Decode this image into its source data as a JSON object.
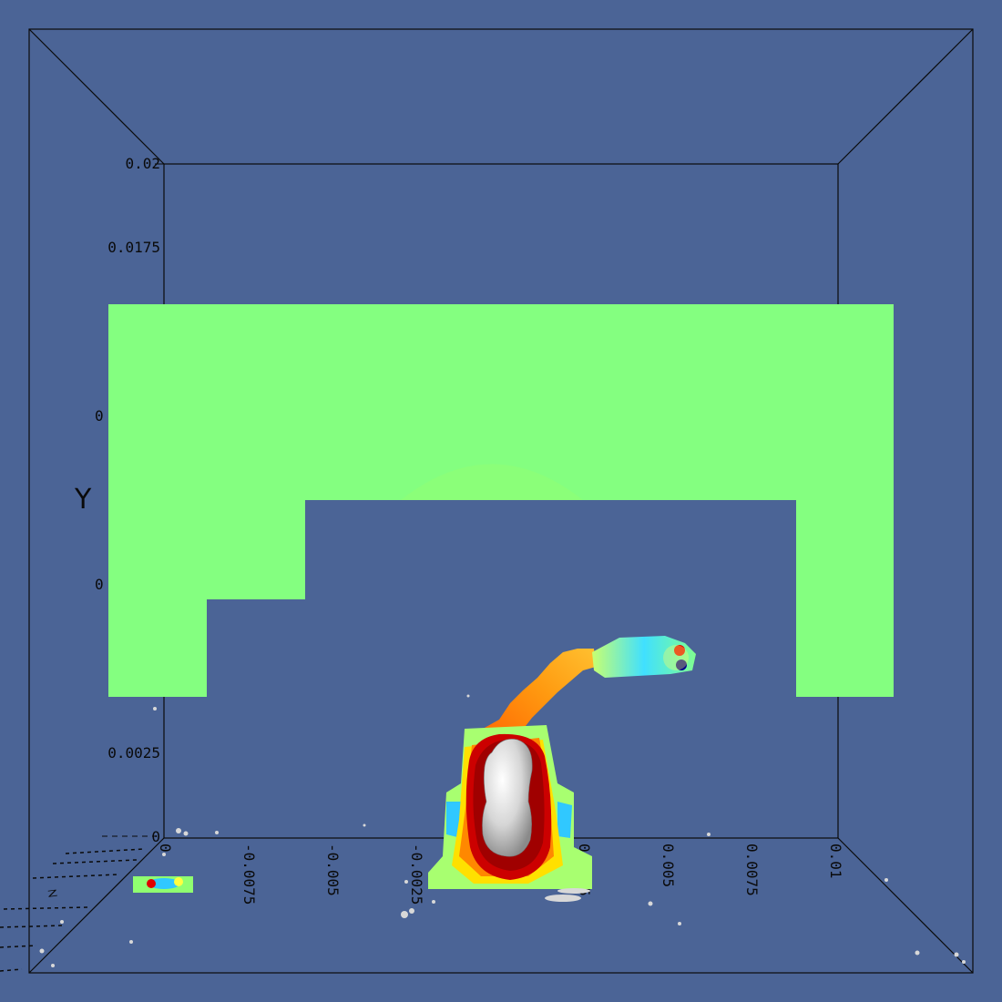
{
  "colors": {
    "background": "#4b6496",
    "box_lines": "#0a0a0a",
    "slice_fill": "#84ff80",
    "isosurface": "#c8c8c8"
  },
  "axes": {
    "y_title": "Y",
    "y_ticks": [
      "0.02",
      "0.0175",
      "0.0025",
      "0"
    ],
    "x_ticks": [
      "0",
      "-0.0075",
      "-0.005",
      "-0.0025",
      "0.0025",
      "0.005",
      "0.0075",
      "0.01"
    ],
    "z_title": "Z"
  },
  "colormap": [
    "#00008b",
    "#0050ff",
    "#00c8ff",
    "#80ff80",
    "#ffff00",
    "#ff9000",
    "#ff2000",
    "#b00000"
  ]
}
